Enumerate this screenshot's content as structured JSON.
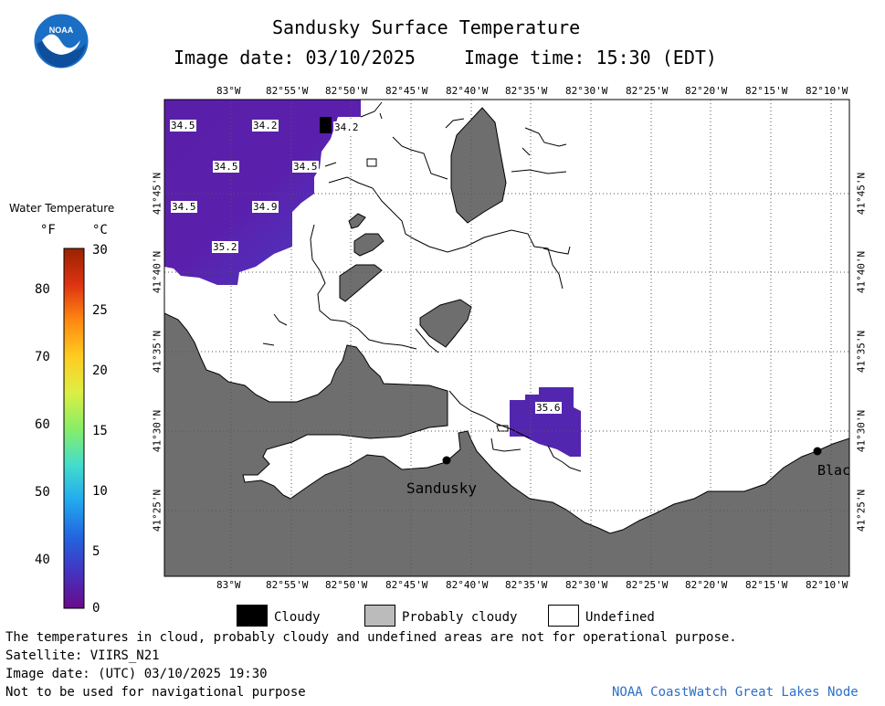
{
  "header": {
    "title": "Sandusky Surface Temperature",
    "date_label": "Image date: 03/10/2025",
    "time_label": "Image time: 15:30 (EDT)"
  },
  "logo": {
    "text": "NOAA"
  },
  "map": {
    "lon_ticks": [
      "83°W",
      "82°55'W",
      "82°50'W",
      "82°45'W",
      "82°40'W",
      "82°35'W",
      "82°30'W",
      "82°25'W",
      "82°20'W",
      "82°15'W",
      "82°10'W"
    ],
    "lat_ticks": [
      "41°45'N",
      "41°40'N",
      "41°35'N",
      "41°30'N",
      "41°25'N"
    ],
    "temp_labels": [
      {
        "id": "t1",
        "value": "34.5"
      },
      {
        "id": "t2",
        "value": "34.2"
      },
      {
        "id": "t3",
        "value": "34.2"
      },
      {
        "id": "t4",
        "value": "34.5"
      },
      {
        "id": "t5",
        "value": "34.5"
      },
      {
        "id": "t6",
        "value": "34.5"
      },
      {
        "id": "t7",
        "value": "34.9"
      },
      {
        "id": "t8",
        "value": "35.2"
      },
      {
        "id": "t9",
        "value": "35.6"
      }
    ],
    "cities": [
      {
        "name": "Sandusky"
      },
      {
        "name": "Blac"
      }
    ]
  },
  "colorbar": {
    "title": "Water Temperature",
    "unit_f": "°F",
    "unit_c": "°C",
    "f_ticks": [
      "80",
      "70",
      "60",
      "50",
      "40"
    ],
    "c_ticks": [
      "30",
      "25",
      "20",
      "15",
      "10",
      "5",
      "0"
    ],
    "colors": [
      "#6a0a8a",
      "#4433c0",
      "#2266e0",
      "#22aaee",
      "#44ddcc",
      "#88ee66",
      "#ddee44",
      "#ffcc22",
      "#ff8811",
      "#dd3311",
      "#992200"
    ]
  },
  "legend": {
    "items": [
      {
        "label": "Cloudy",
        "color": "#000000"
      },
      {
        "label": "Probably cloudy",
        "color": "#bbbbbb"
      },
      {
        "label": "Undefined",
        "color": "#ffffff"
      }
    ]
  },
  "footer": {
    "disclaimer": "The temperatures in cloud, probably cloudy and undefined areas are not for operational purpose.",
    "satellite": "Satellite: VIIRS_N21",
    "utc_date": "Image date: (UTC) 03/10/2025  19:30",
    "nav_warning": "Not to be used for navigational purpose",
    "credit": "NOAA CoastWatch Great Lakes Node"
  }
}
